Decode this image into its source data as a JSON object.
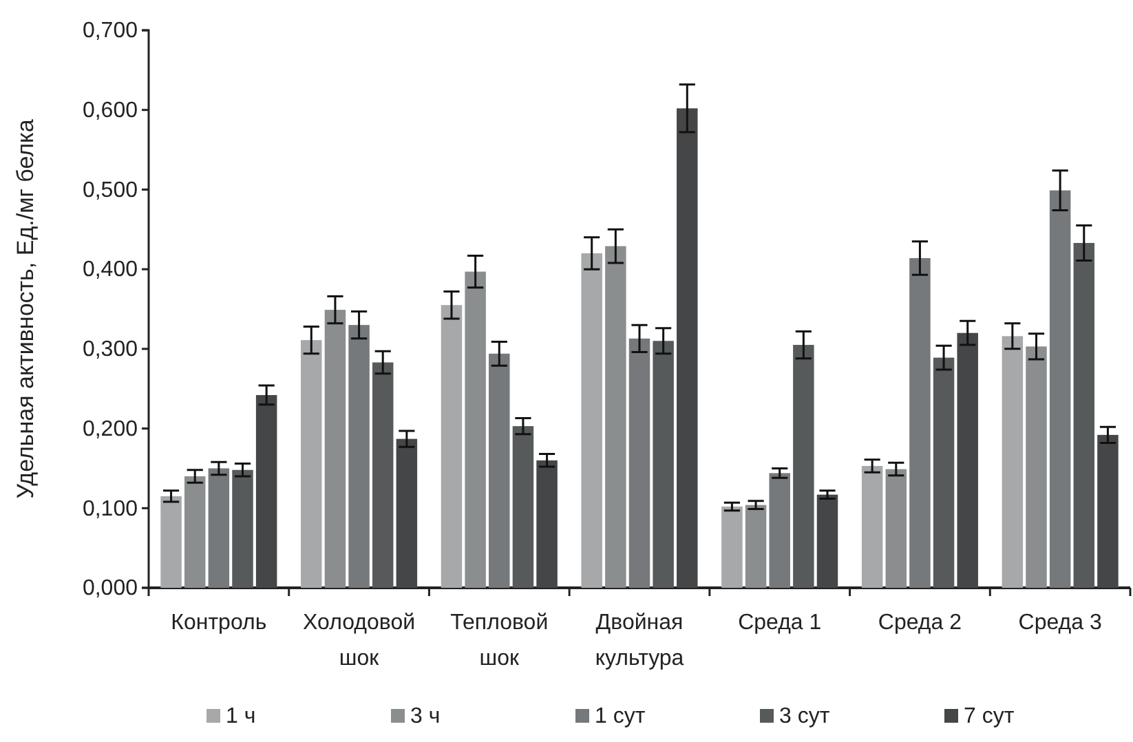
{
  "chart_data": {
    "type": "bar",
    "ylabel": "Удельная активность, Ед./мг белка",
    "categories": [
      "Контроль",
      "Холодовой шок",
      "Тепловой шок",
      "Двойная культура",
      "Среда 1",
      "Среда 2",
      "Среда 3"
    ],
    "series": [
      {
        "name": "1 ч",
        "color": "#a6a8a9",
        "values": [
          0.115,
          0.311,
          0.355,
          0.42,
          0.102,
          0.153,
          0.316
        ],
        "errors": [
          0.007,
          0.017,
          0.017,
          0.02,
          0.005,
          0.008,
          0.016
        ]
      },
      {
        "name": "3 ч",
        "color": "#8b8e8f",
        "values": [
          0.14,
          0.349,
          0.397,
          0.429,
          0.104,
          0.149,
          0.303
        ],
        "errors": [
          0.008,
          0.017,
          0.02,
          0.021,
          0.005,
          0.008,
          0.016
        ]
      },
      {
        "name": "1 сут",
        "color": "#76797b",
        "values": [
          0.15,
          0.33,
          0.294,
          0.313,
          0.144,
          0.414,
          0.499
        ],
        "errors": [
          0.008,
          0.017,
          0.015,
          0.017,
          0.006,
          0.021,
          0.025
        ]
      },
      {
        "name": "3 сут",
        "color": "#575a5b",
        "values": [
          0.148,
          0.283,
          0.203,
          0.31,
          0.305,
          0.289,
          0.433
        ],
        "errors": [
          0.008,
          0.014,
          0.01,
          0.016,
          0.017,
          0.015,
          0.022
        ]
      },
      {
        "name": "7 сут",
        "color": "#454647",
        "values": [
          0.242,
          0.187,
          0.16,
          0.602,
          0.117,
          0.32,
          0.192
        ],
        "errors": [
          0.012,
          0.01,
          0.008,
          0.03,
          0.005,
          0.015,
          0.01
        ]
      }
    ],
    "ylim": [
      0,
      0.7
    ],
    "yticks": [
      {
        "value": 0,
        "label": "0,000"
      },
      {
        "value": 0.1,
        "label": "0,100"
      },
      {
        "value": 0.2,
        "label": "0,200"
      },
      {
        "value": 0.3,
        "label": "0,300"
      },
      {
        "value": 0.4,
        "label": "0,400"
      },
      {
        "value": 0.5,
        "label": "0,500"
      },
      {
        "value": 0.6,
        "label": "0,600"
      },
      {
        "value": 0.7,
        "label": "0,700"
      }
    ],
    "grid": false,
    "legend": "bottom"
  }
}
